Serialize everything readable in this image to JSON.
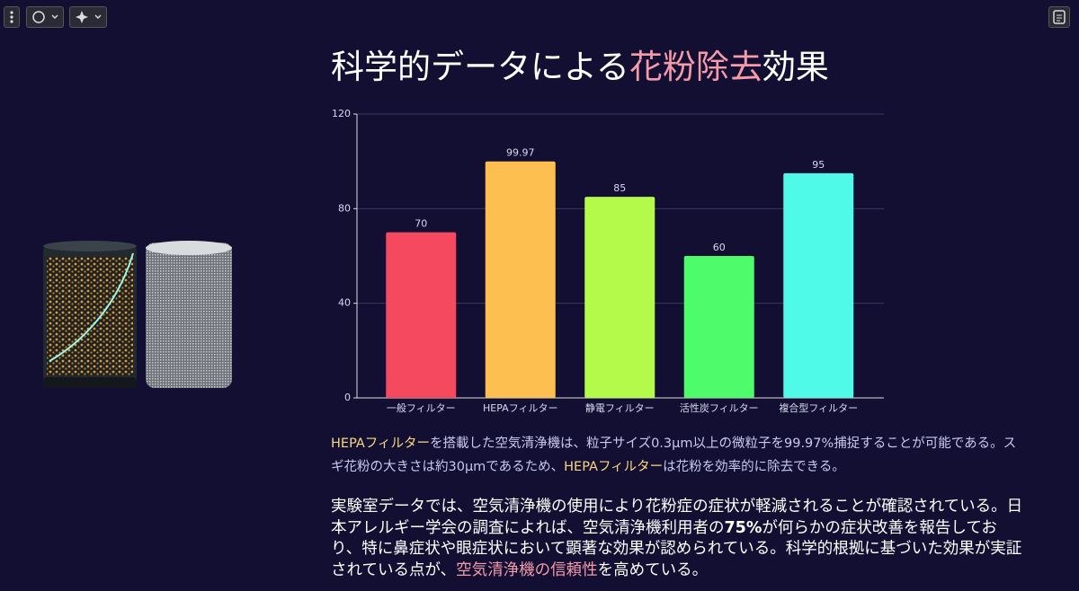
{
  "slide": {
    "title": [
      "科学的データによる",
      {
        "text": "花粉除去",
        "color": "#f59aa8"
      },
      "効果"
    ],
    "paragraph1": [
      {
        "text": "HEPAフィルター",
        "color": "#f9d77e"
      },
      "を搭載した空気清浄機は、粒子サイズ0.3μm以上の微粒子を99.97%捕捉することが可能である。スギ花粉の大きさは約30μmであるため、",
      {
        "text": "HEPAフィルター",
        "color": "#f9d77e"
      },
      "は花粉を効率的に除去できる。"
    ],
    "paragraph2": [
      "実験室データでは、空気清浄機の使用により花粉症の症状が軽減されることが確認されている。日本アレルギー学会の調査によれば、空気清浄機利用者の",
      {
        "text": "75%",
        "bold": true
      },
      "が何らかの症状改善を報告しており、特に鼻症状や眼症状において顕著な効果が認められている。科学的根拠に基づいた効果が実証されている点が、",
      {
        "text": "空気清浄機の信頼性",
        "color": "#f59aa8"
      },
      "を高めている。"
    ]
  },
  "chart_data": {
    "type": "bar",
    "categories": [
      "一般フィルター",
      "HEPAフィルター",
      "静電フィルター",
      "活性炭フィルター",
      "複合型フィルター"
    ],
    "values": [
      70,
      99.97,
      85,
      60,
      95
    ],
    "colors": [
      "#f5495f",
      "#fdbf50",
      "#b3fa4b",
      "#4dfb6b",
      "#4ffbe8"
    ],
    "ylim": [
      0,
      120
    ],
    "yticks": [
      0,
      40,
      80,
      120
    ],
    "grid": true
  }
}
